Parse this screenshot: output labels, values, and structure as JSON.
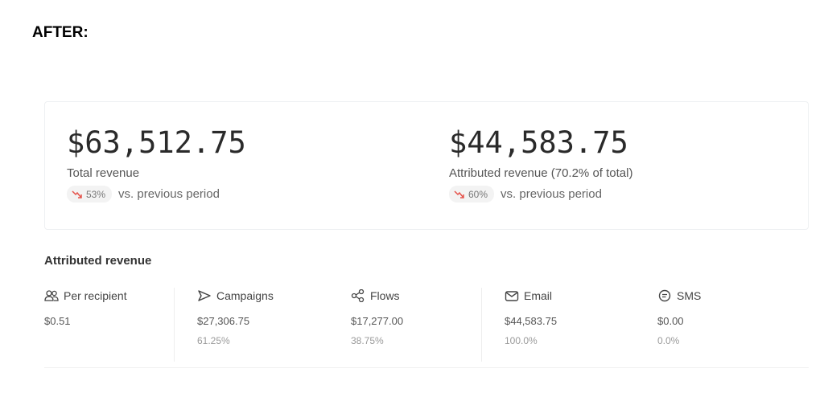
{
  "heading": "AFTER:",
  "summary": {
    "total": {
      "value": "$63,512.75",
      "label": "Total revenue",
      "delta_pct": "53%",
      "delta_text": "vs. previous period"
    },
    "attributed": {
      "value": "$44,583.75",
      "label": "Attributed revenue (70.2% of total)",
      "delta_pct": "60%",
      "delta_text": "vs. previous period"
    }
  },
  "attributed_section": {
    "title": "Attributed revenue",
    "columns": [
      {
        "label": "Per recipient",
        "value": "$0.51",
        "pct": "",
        "icon": "people-icon"
      },
      {
        "label": "Campaigns",
        "value": "$27,306.75",
        "pct": "61.25%",
        "icon": "send-icon"
      },
      {
        "label": "Flows",
        "value": "$17,277.00",
        "pct": "38.75%",
        "icon": "flows-icon"
      },
      {
        "label": "Email",
        "value": "$44,583.75",
        "pct": "100.0%",
        "icon": "email-icon"
      },
      {
        "label": "SMS",
        "value": "$0.00",
        "pct": "0.0%",
        "icon": "sms-icon"
      }
    ]
  },
  "colors": {
    "trend_down": "#e5534b",
    "pill_bg": "#f3f3f3"
  }
}
